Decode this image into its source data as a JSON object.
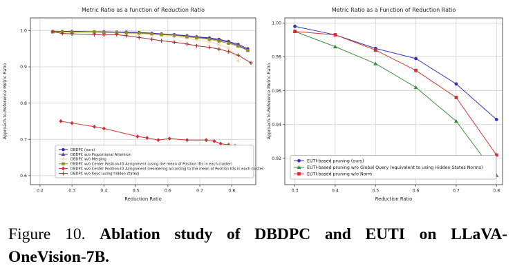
{
  "caption": {
    "label": "Figure 10.",
    "line1": "Ablation study of DBDPC and EUTI on LLaVA-",
    "line2": "OneVision-7B."
  },
  "chart_data": [
    {
      "type": "line",
      "name": "dbdpc-ablation-chart",
      "title": "Metric Ratio as a function of Reduction Ratio",
      "xlabel": "Reduction Ratio",
      "ylabel": "Approach-to-Reference Metric Ratio",
      "xlim": [
        0.17,
        0.875
      ],
      "ylim": [
        0.575,
        1.035
      ],
      "xticks": [
        0.2,
        0.3,
        0.4,
        0.5,
        0.6,
        0.7,
        0.8
      ],
      "xtick_labels": [
        "0.2",
        "0.3",
        "0.4",
        "0.5",
        "0.6",
        "0.7",
        "0.8"
      ],
      "yticks": [
        0.6,
        0.7,
        0.8,
        0.9,
        1.0
      ],
      "ytick_labels": [
        "0.6",
        "0.7",
        "0.8",
        "0.9",
        "1.0"
      ],
      "grid": true,
      "legend_position": "lower left",
      "frame_color": "#444444",
      "grid_color": "#cccccc",
      "series": [
        {
          "name": "DBDPC (ours)",
          "color": "#2a2ab8",
          "marker": "circle",
          "x": [
            0.24,
            0.27,
            0.3,
            0.37,
            0.4,
            0.44,
            0.47,
            0.51,
            0.55,
            0.58,
            0.62,
            0.66,
            0.69,
            0.73,
            0.76,
            0.79,
            0.82,
            0.85
          ],
          "y": [
            0.998,
            0.998,
            0.998,
            0.997,
            0.997,
            0.996,
            0.996,
            0.995,
            0.993,
            0.991,
            0.989,
            0.986,
            0.983,
            0.98,
            0.976,
            0.97,
            0.962,
            0.95
          ]
        },
        {
          "name": "DBDPC w/o Proportional Attention",
          "color": "#6a35a0",
          "marker": "triangle",
          "x": [
            0.24,
            0.27,
            0.3,
            0.37,
            0.4,
            0.44,
            0.47,
            0.51,
            0.55,
            0.58,
            0.62,
            0.66,
            0.69,
            0.73,
            0.76,
            0.79,
            0.82,
            0.85
          ],
          "y": [
            0.997,
            0.997,
            0.997,
            0.996,
            0.996,
            0.995,
            0.995,
            0.994,
            0.992,
            0.99,
            0.988,
            0.985,
            0.982,
            0.978,
            0.974,
            0.968,
            0.959,
            0.947
          ]
        },
        {
          "name": "DBDPC w/o Merging",
          "color": "#f2dcae",
          "marker": "diamond",
          "x": [
            0.24,
            0.27,
            0.3,
            0.37,
            0.4,
            0.44,
            0.47,
            0.51,
            0.55,
            0.58,
            0.62,
            0.66,
            0.69,
            0.73,
            0.76,
            0.79,
            0.82
          ],
          "y": [
            0.997,
            0.996,
            0.996,
            0.995,
            0.995,
            0.994,
            0.993,
            0.991,
            0.989,
            0.986,
            0.983,
            0.979,
            0.974,
            0.969,
            0.962,
            0.951,
            0.917
          ]
        },
        {
          "name": "DBDPC w/o Center Position-ID Assignment (using the mean of Position IDs in each cluster)",
          "color": "#8f8f22",
          "marker": "square",
          "x": [
            0.24,
            0.27,
            0.3,
            0.37,
            0.4,
            0.44,
            0.47,
            0.51,
            0.55,
            0.58,
            0.62,
            0.66,
            0.69,
            0.73,
            0.76,
            0.79,
            0.82,
            0.85
          ],
          "y": [
            0.997,
            0.997,
            0.996,
            0.996,
            0.995,
            0.995,
            0.994,
            0.993,
            0.991,
            0.989,
            0.987,
            0.983,
            0.98,
            0.976,
            0.971,
            0.965,
            0.957,
            0.945
          ]
        },
        {
          "name": "DBDPC w/o Center Position-ID Assignment (reordering according to the mean of Position IDs in each cluster)",
          "color": "#d03030",
          "marker": "diamond",
          "x": [
            0.265,
            0.3,
            0.37,
            0.4,
            0.505,
            0.535,
            0.57,
            0.605,
            0.66,
            0.72,
            0.745,
            0.765,
            0.79,
            0.81
          ],
          "y": [
            0.75,
            0.745,
            0.735,
            0.73,
            0.708,
            0.704,
            0.698,
            0.702,
            0.698,
            0.698,
            0.695,
            0.688,
            0.685,
            0.682
          ]
        },
        {
          "name": "DBDPC w/o Keys (using hidden states)",
          "color": "#99342c",
          "marker": "plus",
          "x": [
            0.24,
            0.27,
            0.3,
            0.37,
            0.4,
            0.44,
            0.47,
            0.51,
            0.55,
            0.58,
            0.62,
            0.66,
            0.69,
            0.73,
            0.76,
            0.79,
            0.82,
            0.86
          ],
          "y": [
            0.997,
            0.992,
            0.991,
            0.989,
            0.988,
            0.989,
            0.986,
            0.981,
            0.976,
            0.972,
            0.968,
            0.963,
            0.958,
            0.954,
            0.949,
            0.942,
            0.932,
            0.911
          ]
        }
      ]
    },
    {
      "type": "line",
      "name": "euti-ablation-chart",
      "title": "Metric Ratio as a Function of Reduction Ratio",
      "xlabel": "Reduction Ratio",
      "ylabel": "Approach-to-Reference Metric Ratio",
      "xlim": [
        0.275,
        0.815
      ],
      "ylim": [
        0.9045,
        1.003
      ],
      "xticks": [
        0.3,
        0.4,
        0.5,
        0.6,
        0.7,
        0.8
      ],
      "xtick_labels": [
        "0.3",
        "0.4",
        "0.5",
        "0.6",
        "0.7",
        "0.8"
      ],
      "yticks": [
        0.92,
        0.94,
        0.96,
        0.98,
        1.0
      ],
      "ytick_labels": [
        "0.92",
        "0.94",
        "0.96",
        "0.98",
        "1.00"
      ],
      "grid": true,
      "legend_position": "lower left",
      "frame_color": "#444444",
      "grid_color": "#cccccc",
      "series": [
        {
          "name": "EUTI-based pruning (ours)",
          "color": "#3434bb",
          "marker": "circle",
          "x": [
            0.3,
            0.4,
            0.5,
            0.6,
            0.7,
            0.8
          ],
          "y": [
            0.998,
            0.993,
            0.985,
            0.979,
            0.964,
            0.943
          ]
        },
        {
          "name": "EUTI-based pruning w/o Global Query (equivalent to using Hidden States Norms)",
          "color": "#3a8c3a",
          "marker": "triangle",
          "x": [
            0.3,
            0.4,
            0.5,
            0.6,
            0.7,
            0.8
          ],
          "y": [
            0.995,
            0.986,
            0.976,
            0.962,
            0.942,
            0.91
          ]
        },
        {
          "name": "EUTI-based pruning w/o Norm",
          "color": "#cc3434",
          "marker": "square",
          "x": [
            0.3,
            0.4,
            0.5,
            0.6,
            0.7,
            0.8
          ],
          "y": [
            0.995,
            0.993,
            0.984,
            0.972,
            0.956,
            0.922
          ]
        }
      ]
    }
  ]
}
